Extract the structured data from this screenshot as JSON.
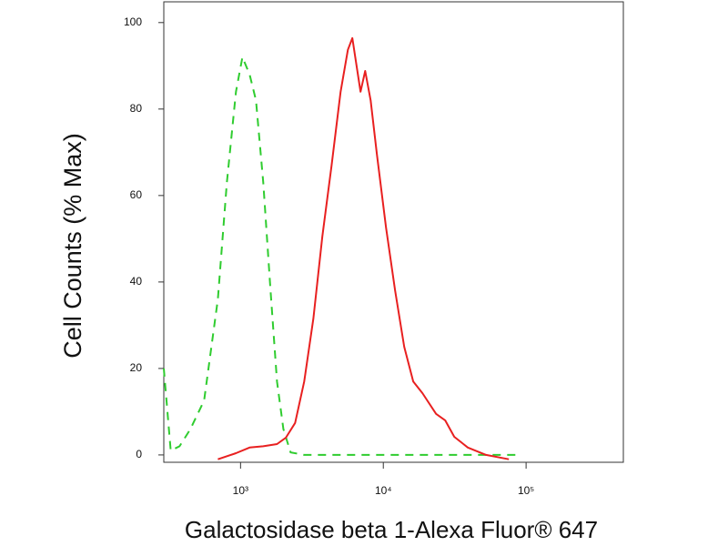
{
  "chart_data": {
    "type": "line",
    "xlabel": "Galactosidase beta 1-Alexa Fluor® 647",
    "ylabel": "Cell Counts (% Max)",
    "xscale": "log",
    "xlim": [
      290,
      480000
    ],
    "ylim": [
      -1.7,
      104.8
    ],
    "xticks": [
      {
        "value": 1000,
        "label": "10³"
      },
      {
        "value": 10000,
        "label": "10⁴"
      },
      {
        "value": 100000,
        "label": "10⁵"
      }
    ],
    "yticks": [
      0,
      20,
      40,
      60,
      80,
      100
    ],
    "grid": false,
    "series": [
      {
        "color": "#2fcc2f",
        "style": "dashed",
        "x": [
          290,
          324,
          374,
          446,
          556,
          693,
          802,
          929,
          1030,
          1158,
          1283,
          1443,
          1622,
          1799,
          1994,
          2240,
          2790,
          7240,
          31400,
          87400
        ],
        "values": [
          20,
          1,
          2,
          6,
          12.6,
          36,
          63,
          84,
          92,
          88,
          82,
          63,
          38,
          17,
          6,
          0.6,
          0,
          0,
          0,
          0
        ]
      },
      {
        "color": "#e82020",
        "style": "solid",
        "x": [
          693,
          929,
          1158,
          1443,
          1799,
          2080,
          2410,
          2790,
          3240,
          3740,
          4340,
          5020,
          5650,
          6070,
          6530,
          6930,
          7460,
          8150,
          9020,
          10440,
          12100,
          14000,
          16200,
          18800,
          23400,
          27100,
          31400,
          39100,
          52400,
          75700
        ],
        "values": [
          -1,
          0.4,
          1.7,
          2,
          2.5,
          4,
          7.4,
          17,
          31.6,
          50.5,
          67,
          84,
          93.7,
          96.4,
          89.5,
          84,
          88.8,
          82,
          69.5,
          52.6,
          38,
          25,
          17,
          14.3,
          9.5,
          8,
          4.2,
          1.7,
          0,
          -1
        ]
      }
    ]
  }
}
